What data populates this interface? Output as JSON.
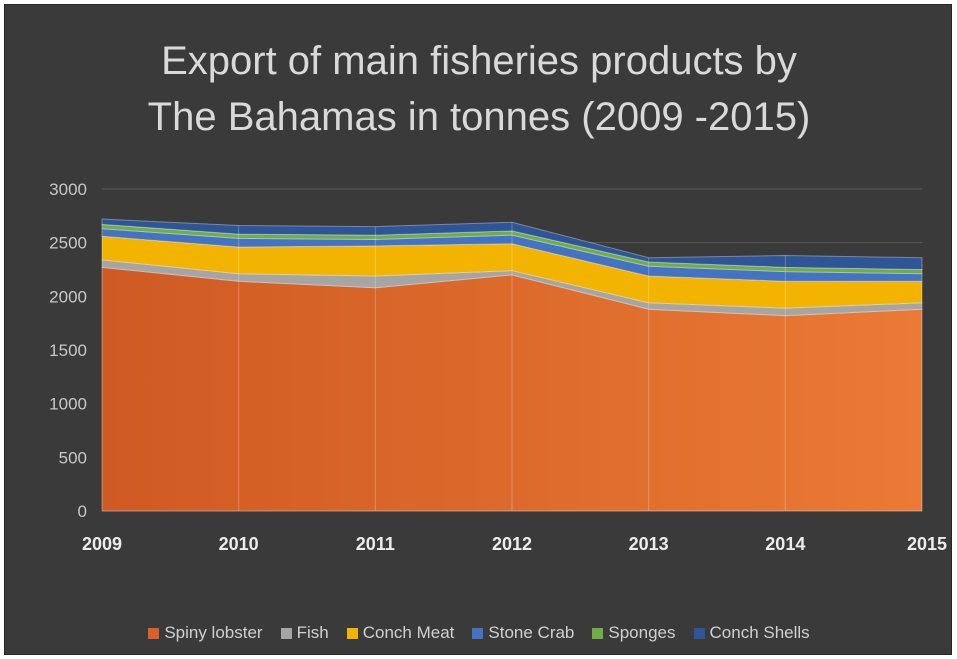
{
  "chart_data": {
    "type": "area",
    "stacked": true,
    "title": "Export of main fisheries products by\nThe Bahamas in tonnes (2009 -2015)",
    "x": [
      "2009",
      "2010",
      "2011",
      "2012",
      "2013",
      "2014",
      "2015"
    ],
    "ylim": [
      0,
      3000
    ],
    "yticks": [
      "0",
      "500",
      "1000",
      "1500",
      "2000",
      "2500",
      "3000"
    ],
    "grid": true,
    "legend_position": "bottom",
    "series": [
      {
        "name": "Spiny lobster",
        "color": "#d9622b",
        "values": [
          2270,
          2140,
          2080,
          2200,
          1880,
          1820,
          1880
        ]
      },
      {
        "name": "Fish",
        "color": "#a5a5a5",
        "values": [
          70,
          70,
          110,
          40,
          60,
          70,
          60
        ]
      },
      {
        "name": "Conch Meat",
        "color": "#f2b400",
        "values": [
          220,
          250,
          280,
          250,
          250,
          250,
          200
        ]
      },
      {
        "name": "Stone Crab",
        "color": "#4472c4",
        "values": [
          70,
          80,
          60,
          80,
          90,
          90,
          70
        ]
      },
      {
        "name": "Sponges",
        "color": "#70ad47",
        "values": [
          40,
          40,
          40,
          40,
          40,
          40,
          40
        ]
      },
      {
        "name": "Conch Shells",
        "color": "#2e5597",
        "values": [
          50,
          80,
          80,
          80,
          40,
          110,
          110
        ]
      }
    ]
  }
}
